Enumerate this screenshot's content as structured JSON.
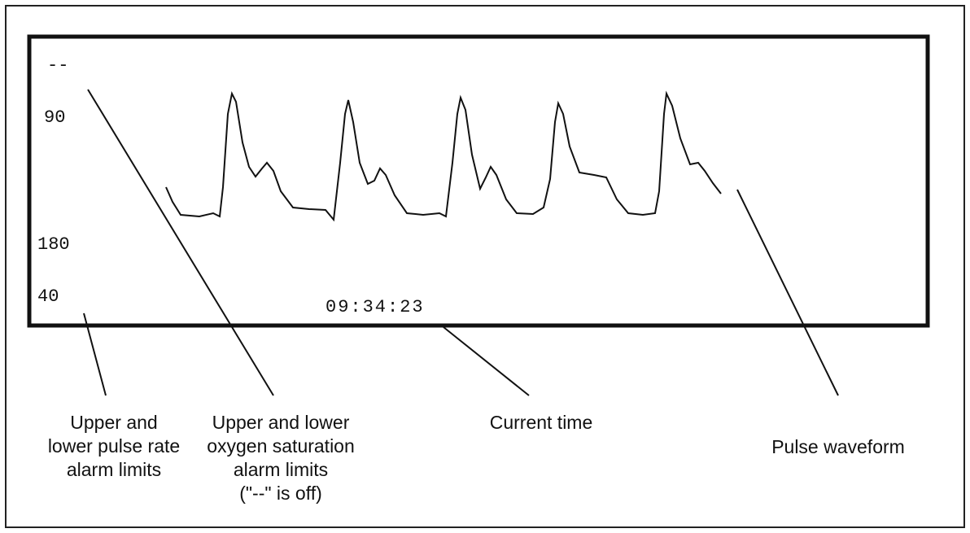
{
  "screen": {
    "spo2_limit": "--",
    "spo2_lower": "90",
    "pulse_upper": "180",
    "pulse_lower": "40",
    "time": "09:34:23"
  },
  "callouts": [
    {
      "lines": [
        "Upper and",
        "lower pulse rate",
        "alarm limits"
      ]
    },
    {
      "lines": [
        "Upper and lower",
        "oxygen saturation",
        "alarm limits",
        "(\"--\" is off)"
      ]
    },
    {
      "lines": [
        "Current time"
      ]
    },
    {
      "lines": [
        "Pulse waveform"
      ]
    }
  ]
}
